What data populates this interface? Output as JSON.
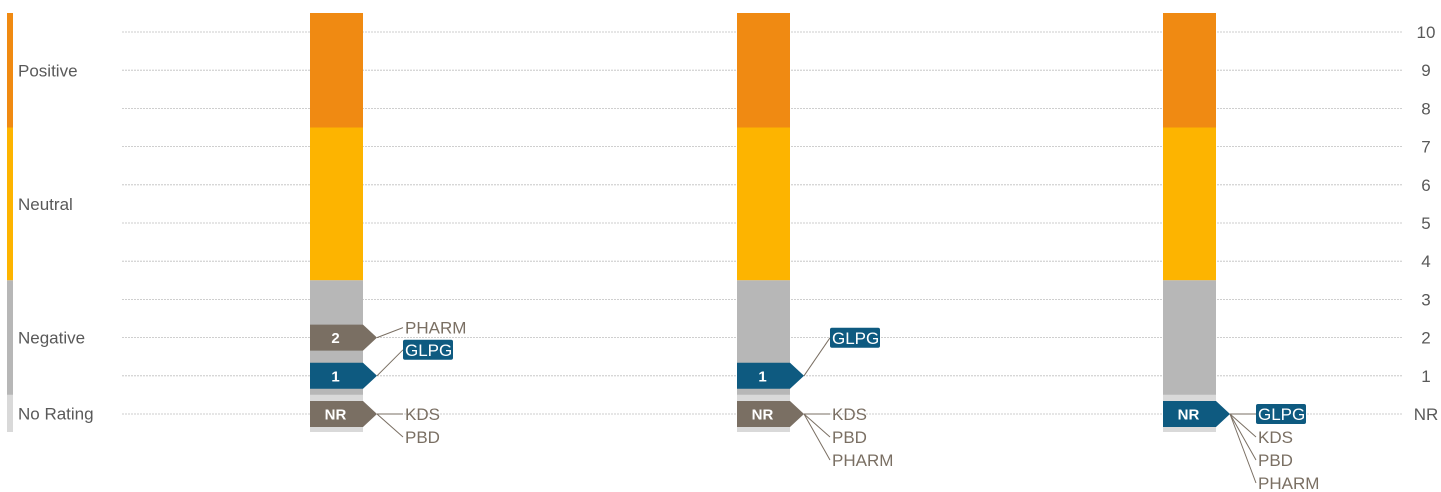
{
  "chart_data": {
    "type": "bar",
    "y_axis": {
      "ticks": [
        "10",
        "9",
        "8",
        "7",
        "6",
        "5",
        "4",
        "3",
        "2",
        "1",
        "NR"
      ],
      "range": [
        0,
        10
      ],
      "position": "right",
      "grid": true
    },
    "rating_bands": [
      {
        "name": "Positive",
        "from": 7.5,
        "to": 10.5,
        "color": "#F08A12"
      },
      {
        "name": "Neutral",
        "from": 3.5,
        "to": 7.5,
        "color": "#FDB400"
      },
      {
        "name": "Negative",
        "from": 0.5,
        "to": 3.5,
        "color": "#B7B7B7"
      },
      {
        "name": "No Rating",
        "from": -0.5,
        "to": 0.5,
        "color": "#D9D9D9"
      }
    ],
    "columns": [
      {
        "markers": [
          {
            "label": "2",
            "value": 2,
            "color": "#7A6F63",
            "companies": [
              {
                "name": "PHARM",
                "highlight": false
              }
            ]
          },
          {
            "label": "1",
            "value": 1,
            "color": "#0E5A80",
            "companies": [
              {
                "name": "GLPG",
                "highlight": true
              }
            ]
          },
          {
            "label": "NR",
            "value": 0,
            "color": "#7A6F63",
            "companies": [
              {
                "name": "KDS",
                "highlight": false
              },
              {
                "name": "PBD",
                "highlight": false
              }
            ]
          }
        ]
      },
      {
        "markers": [
          {
            "label": "1",
            "value": 1,
            "color": "#0E5A80",
            "companies": [
              {
                "name": "GLPG",
                "highlight": true
              }
            ]
          },
          {
            "label": "NR",
            "value": 0,
            "color": "#7A6F63",
            "companies": [
              {
                "name": "KDS",
                "highlight": false
              },
              {
                "name": "PBD",
                "highlight": false
              },
              {
                "name": "PHARM",
                "highlight": false
              }
            ]
          }
        ]
      },
      {
        "markers": [
          {
            "label": "NR",
            "value": 0,
            "color": "#0E5A80",
            "companies": [
              {
                "name": "GLPG",
                "highlight": true
              },
              {
                "name": "KDS",
                "highlight": false
              },
              {
                "name": "PBD",
                "highlight": false
              },
              {
                "name": "PHARM",
                "highlight": false
              }
            ]
          }
        ]
      }
    ],
    "colors": {
      "highlight": "#0E5A80",
      "neutral_marker": "#7A6F63",
      "label_text": "#7A6F63",
      "axis_text": "#595959",
      "grid": "#BFBFBF"
    }
  }
}
